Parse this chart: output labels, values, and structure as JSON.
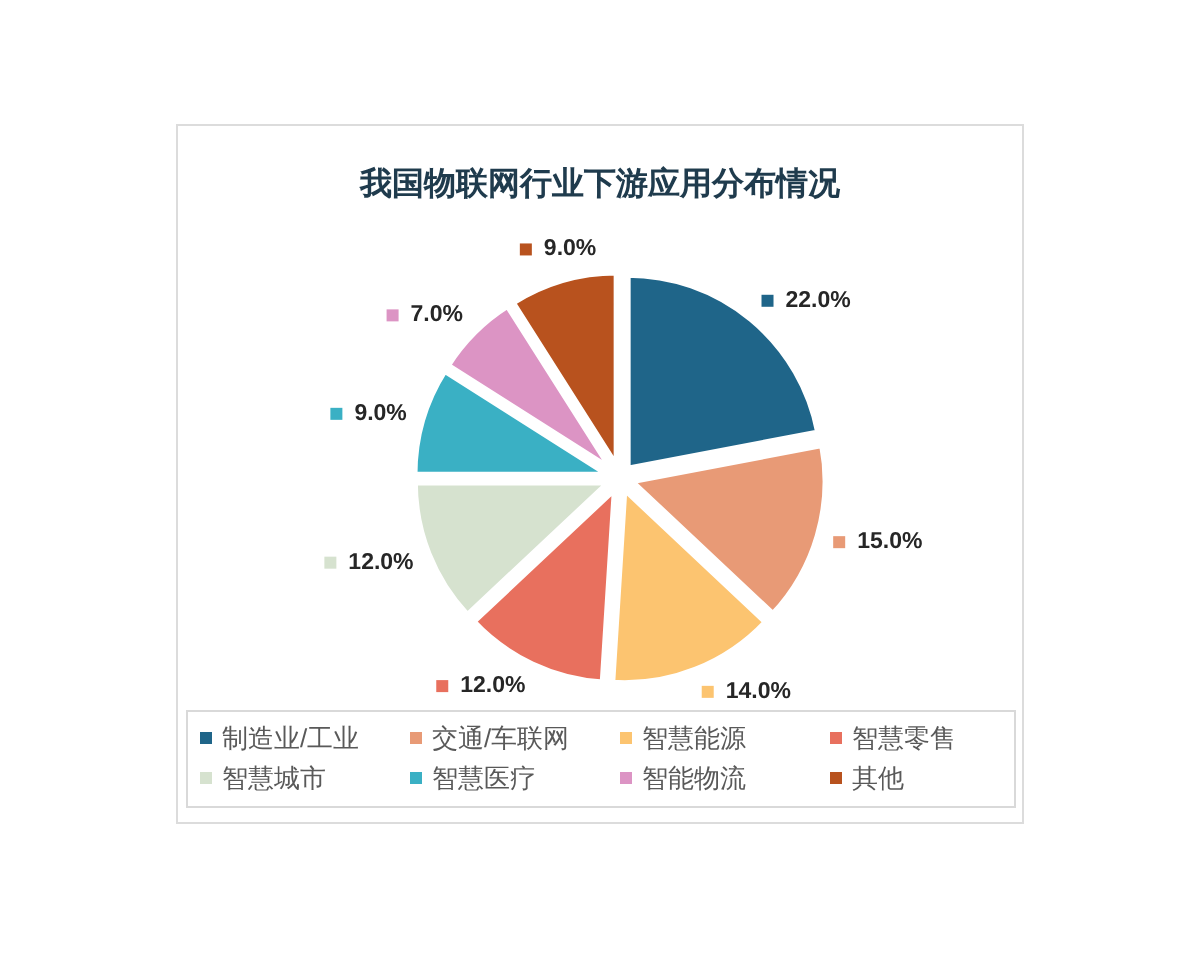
{
  "chart_data": {
    "type": "pie",
    "title": "我国物联网行业下游应用分布情况",
    "categories": [
      "制造业/工业",
      "交通/车联网",
      "智慧能源",
      "智慧零售",
      "智慧城市",
      "智慧医疗",
      "智能物流",
      "其他"
    ],
    "values": [
      22,
      15,
      14,
      12,
      12,
      9,
      7,
      9
    ],
    "colors": [
      "#1f6589",
      "#e89a76",
      "#fcc470",
      "#e8705e",
      "#d6e2cf",
      "#3ab0c4",
      "#dc94c4",
      "#b8521e"
    ],
    "value_labels": [
      "22.0%",
      "15.0%",
      "14.0%",
      "12.0%",
      "12.0%",
      "9.0%",
      "7.0%",
      "9.0%"
    ],
    "legend": "bottom"
  }
}
